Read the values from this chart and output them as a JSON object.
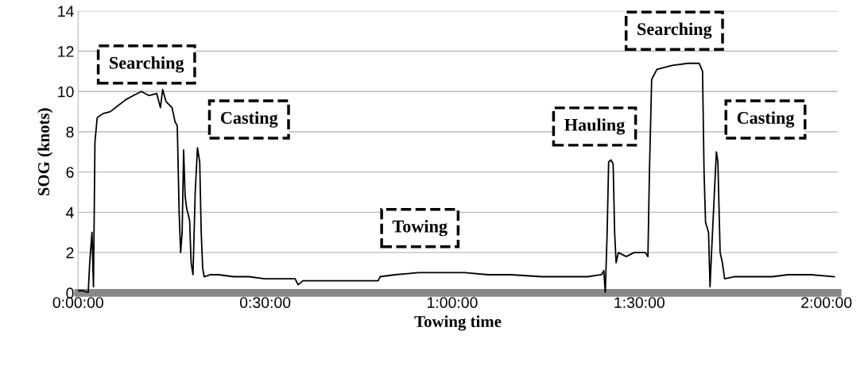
{
  "chart_data": {
    "type": "line",
    "xlabel": "Towing time",
    "ylabel": "SOG (knots)",
    "x": [
      0,
      0.014,
      0.027,
      0.031,
      0.037,
      0.041,
      0.045,
      0.051,
      0.066,
      0.086,
      0.107,
      0.128,
      0.148,
      0.169,
      0.189,
      0.21,
      0.22,
      0.226,
      0.235,
      0.251,
      0.259,
      0.265,
      0.27,
      0.274,
      0.278,
      0.282,
      0.286,
      0.29,
      0.298,
      0.302,
      0.307,
      0.313,
      0.319,
      0.325,
      0.329,
      0.333,
      0.337,
      0.354,
      0.374,
      0.416,
      0.457,
      0.498,
      0.539,
      0.58,
      0.588,
      0.601,
      0.663,
      0.724,
      0.786,
      0.802,
      0.807,
      0.848,
      0.909,
      0.971,
      1.033,
      1.095,
      1.156,
      1.239,
      1.3,
      1.362,
      1.399,
      1.405,
      1.409,
      1.414,
      1.418,
      1.424,
      1.43,
      1.434,
      1.438,
      1.444,
      1.465,
      1.486,
      1.516,
      1.523,
      1.527,
      1.533,
      1.547,
      1.588,
      1.63,
      1.66,
      1.669,
      1.673,
      1.677,
      1.685,
      1.689,
      1.693,
      1.702,
      1.706,
      1.71,
      1.716,
      1.722,
      1.728,
      1.753,
      1.815,
      1.856,
      1.897,
      1.959,
      2.021
    ],
    "series": [
      {
        "color": "#000000",
        "values": [
          0.1,
          0.1,
          0.0,
          1.5,
          3.0,
          0.3,
          7.5,
          8.7,
          8.9,
          9.0,
          9.3,
          9.6,
          9.8,
          10.0,
          9.8,
          9.9,
          9.2,
          10.1,
          9.5,
          9.2,
          8.5,
          8.3,
          4.0,
          2.0,
          3.0,
          7.1,
          4.8,
          4.2,
          3.6,
          1.5,
          0.9,
          5.0,
          7.2,
          6.5,
          3.0,
          1.2,
          0.8,
          0.9,
          0.9,
          0.8,
          0.8,
          0.7,
          0.7,
          0.7,
          0.4,
          0.6,
          0.6,
          0.6,
          0.6,
          0.6,
          0.8,
          0.9,
          1.0,
          1.0,
          1.0,
          0.9,
          0.9,
          0.8,
          0.8,
          0.8,
          0.9,
          1.1,
          0.0,
          3.0,
          6.5,
          6.6,
          6.4,
          3.0,
          1.5,
          2.0,
          1.8,
          2.0,
          2.0,
          1.8,
          6.0,
          10.6,
          11.1,
          11.3,
          11.4,
          11.4,
          11.0,
          6.0,
          3.5,
          3.0,
          0.3,
          2.0,
          5.5,
          7.0,
          6.5,
          2.0,
          1.5,
          0.7,
          0.8,
          0.8,
          0.8,
          0.9,
          0.9,
          0.8
        ]
      }
    ],
    "xlim": [
      0,
      2.03
    ],
    "xticks": [
      {
        "value": 0,
        "label": "0:00:00"
      },
      {
        "value": 0.5,
        "label": "0:30:00"
      },
      {
        "value": 1,
        "label": "1:00:00"
      },
      {
        "value": 1.5,
        "label": "1:30:00"
      },
      {
        "value": 2,
        "label": "2:00:00"
      }
    ],
    "ylim": [
      0,
      14
    ],
    "yticks": [
      0,
      2,
      4,
      6,
      8,
      10,
      12,
      14
    ],
    "grid": "y",
    "marker": "none",
    "line_style": "solid",
    "annotations": [
      "Searching",
      "Casting",
      "Towing",
      "Hauling",
      "Searching",
      "Casting"
    ]
  }
}
